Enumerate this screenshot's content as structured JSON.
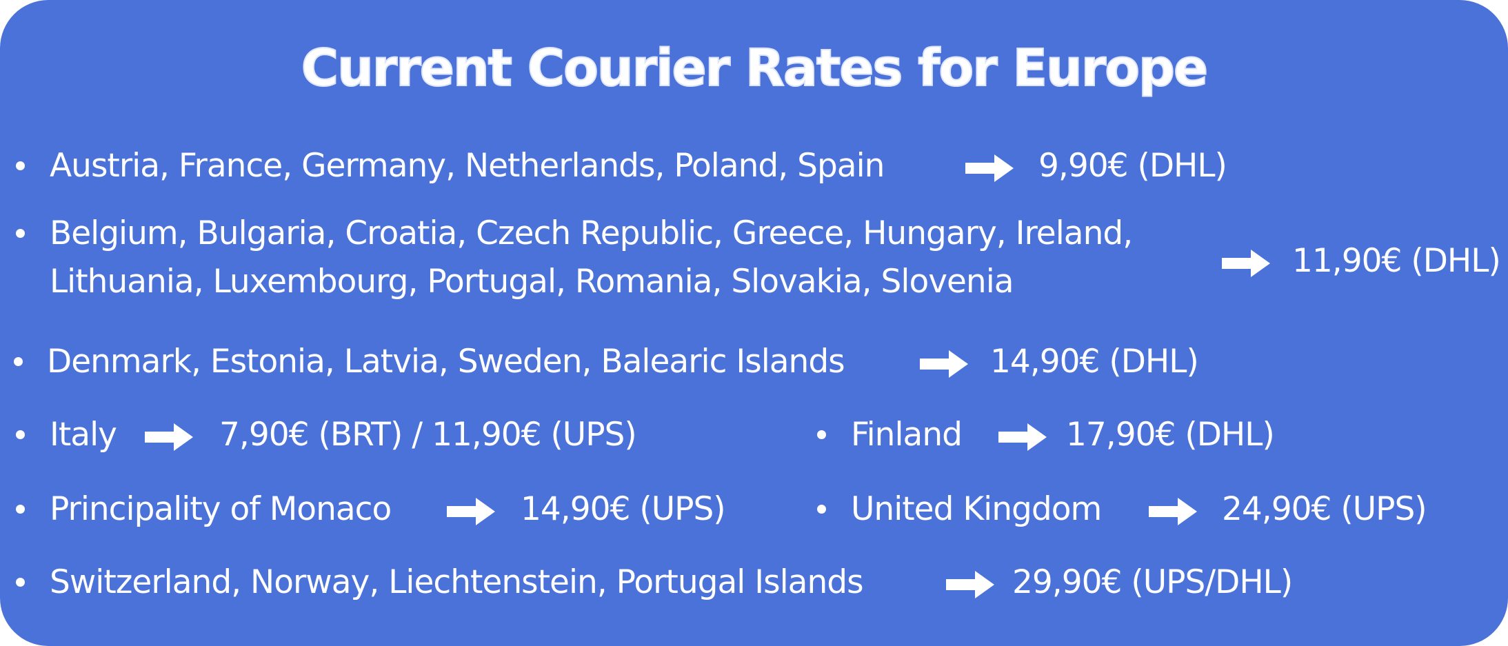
{
  "title": "Current Courier Rates for Europe",
  "colors": {
    "background": "#4a72d9",
    "text": "#ffffff"
  },
  "icons": {
    "bullet": "bullet-dot-icon",
    "arrow": "right-arrow-icon"
  },
  "rates": [
    {
      "countries": "Austria, France, Germany, Netherlands, Poland, Spain",
      "price": "9,90€ (DHL)"
    },
    {
      "countries_line1": "Belgium, Bulgaria, Croatia, Czech Republic, Greece, Hungary, Ireland,",
      "countries_line2": "Lithuania, Luxembourg, Portugal, Romania, Slovakia, Slovenia",
      "price": "11,90€ (DHL)"
    },
    {
      "countries": "Denmark, Estonia, Latvia, Sweden, Balearic Islands",
      "price": "14,90€ (DHL)"
    },
    {
      "countries": "Italy",
      "price": "7,90€ (BRT) / 11,90€ (UPS)"
    },
    {
      "countries": "Finland",
      "price": "17,90€ (DHL)"
    },
    {
      "countries": "Principality of Monaco",
      "price": "14,90€ (UPS)"
    },
    {
      "countries": "United Kingdom",
      "price": "24,90€ (UPS)"
    },
    {
      "countries": "Switzerland, Norway, Liechtenstein, Portugal Islands",
      "price": "29,90€ (UPS/DHL)"
    }
  ]
}
